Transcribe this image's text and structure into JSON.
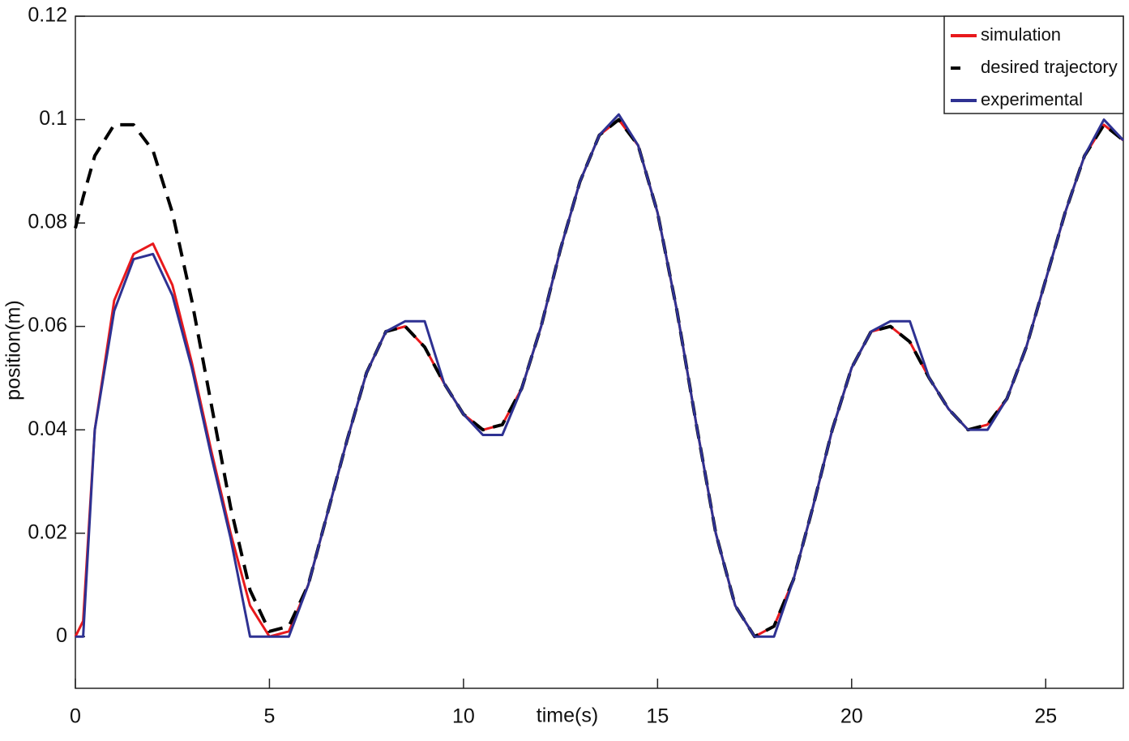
{
  "chart_data": {
    "type": "line",
    "x_label": "time(s)",
    "y_label": "position(m)",
    "x": [
      0,
      0.2,
      0.5,
      1,
      1.5,
      2,
      2.5,
      3,
      3.5,
      4,
      4.5,
      5,
      5.5,
      6,
      6.5,
      7,
      7.5,
      8,
      8.5,
      9,
      9.5,
      10,
      10.5,
      11,
      11.5,
      12,
      12.5,
      13,
      13.5,
      14,
      14.5,
      15,
      15.5,
      16,
      16.5,
      17,
      17.5,
      18,
      18.5,
      19,
      19.5,
      20,
      20.5,
      21,
      21.5,
      22,
      22.5,
      23,
      23.5,
      24,
      24.5,
      25,
      25.5,
      26,
      26.5,
      27
    ],
    "series": [
      {
        "name": "simulation",
        "color": "#e8191c",
        "style": "solid",
        "values": [
          0,
          0.003,
          0.04,
          0.065,
          0.074,
          0.076,
          0.068,
          0.053,
          0.036,
          0.02,
          0.006,
          0.0,
          0.001,
          0.01,
          0.024,
          0.038,
          0.051,
          0.059,
          0.06,
          0.056,
          0.049,
          0.043,
          0.04,
          0.041,
          0.048,
          0.06,
          0.075,
          0.088,
          0.097,
          0.1,
          0.095,
          0.082,
          0.063,
          0.041,
          0.02,
          0.006,
          0.0,
          0.002,
          0.011,
          0.025,
          0.04,
          0.052,
          0.059,
          0.06,
          0.057,
          0.05,
          0.044,
          0.04,
          0.041,
          0.046,
          0.056,
          0.069,
          0.082,
          0.093,
          0.099,
          0.096
        ]
      },
      {
        "name": "desired trajectory",
        "color": "#000000",
        "style": "dashed",
        "values": [
          0.079,
          0.085,
          0.093,
          0.099,
          0.099,
          0.094,
          0.082,
          0.065,
          0.045,
          0.025,
          0.009,
          0.001,
          0.002,
          0.01,
          0.024,
          0.038,
          0.051,
          0.059,
          0.06,
          0.056,
          0.049,
          0.043,
          0.04,
          0.041,
          0.048,
          0.06,
          0.075,
          0.088,
          0.097,
          0.1,
          0.095,
          0.082,
          0.063,
          0.041,
          0.02,
          0.006,
          0.0,
          0.002,
          0.011,
          0.025,
          0.04,
          0.052,
          0.059,
          0.06,
          0.057,
          0.05,
          0.044,
          0.04,
          0.041,
          0.046,
          0.056,
          0.069,
          0.082,
          0.093,
          0.099,
          0.096
        ]
      },
      {
        "name": "experimental",
        "color": "#2e3192",
        "style": "solid",
        "values": [
          0,
          0,
          0.04,
          0.063,
          0.073,
          0.074,
          0.066,
          0.052,
          0.035,
          0.019,
          0.0,
          0.0,
          0.0,
          0.01,
          0.024,
          0.038,
          0.051,
          0.059,
          0.061,
          0.061,
          0.049,
          0.043,
          0.039,
          0.039,
          0.048,
          0.06,
          0.075,
          0.088,
          0.097,
          0.101,
          0.095,
          0.082,
          0.063,
          0.041,
          0.02,
          0.006,
          0.0,
          0.0,
          0.011,
          0.025,
          0.04,
          0.052,
          0.059,
          0.061,
          0.061,
          0.05,
          0.044,
          0.04,
          0.04,
          0.046,
          0.056,
          0.069,
          0.082,
          0.093,
          0.1,
          0.096
        ]
      }
    ],
    "xlim": [
      0,
      27
    ],
    "xticks": [
      0,
      5,
      10,
      15,
      20,
      25
    ],
    "ylim": [
      -0.01,
      0.12
    ],
    "yticks": [
      0,
      0.02,
      0.04,
      0.06,
      0.08,
      0.1,
      0.12
    ],
    "grid": false,
    "legend": "upper right"
  }
}
